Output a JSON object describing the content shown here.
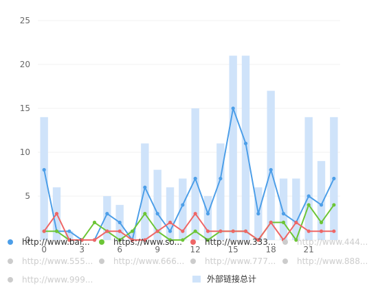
{
  "chart_data": {
    "type": "bar+line",
    "x": [
      "0",
      "1",
      "2",
      "3",
      "4",
      "5",
      "6",
      "7",
      "8",
      "9",
      "10",
      "11",
      "12",
      "13",
      "14",
      "15",
      "16",
      "17",
      "18",
      "19",
      "20",
      "21",
      "22",
      "23"
    ],
    "x_tick_labels": [
      "0",
      "3",
      "6",
      "9",
      "12",
      "15",
      "18",
      "21"
    ],
    "ylim": [
      0,
      25
    ],
    "y_ticks": [
      "0",
      "5",
      "10",
      "15",
      "20",
      "25"
    ],
    "grid": true,
    "legend_placement": "bottom",
    "bar_series": {
      "name": "外部链接总计",
      "color": "#cfe3fa",
      "values": [
        14,
        6,
        1,
        0,
        0,
        5,
        4,
        1,
        11,
        8,
        6,
        7,
        15,
        5,
        11,
        21,
        21,
        6,
        17,
        7,
        7,
        14,
        9,
        14
      ]
    },
    "series": [
      {
        "name": "http://www.bai...",
        "color": "#4c9ee8",
        "type": "line",
        "values": [
          8,
          1,
          1,
          0,
          0,
          3,
          2,
          0,
          6,
          3,
          1,
          4,
          7,
          3,
          7,
          15,
          11,
          3,
          8,
          3,
          2,
          5,
          4,
          7
        ]
      },
      {
        "name": "https://www.so...",
        "color": "#6cc536",
        "type": "line",
        "values": [
          1,
          1,
          0,
          0,
          2,
          1,
          0,
          1,
          3,
          1,
          0,
          0,
          1,
          0,
          1,
          1,
          1,
          0,
          2,
          2,
          0,
          4,
          2,
          4
        ]
      },
      {
        "name": "http://www.333...",
        "color": "#ee6666",
        "type": "line",
        "values": [
          1,
          3,
          0,
          0,
          0,
          1,
          1,
          0,
          0,
          1,
          2,
          1,
          3,
          1,
          1,
          1,
          1,
          0,
          2,
          0,
          2,
          1,
          1,
          1
        ]
      }
    ],
    "inactive_legend": [
      "http://www.444...",
      "http://www.555...",
      "http://www.666...",
      "http://www.777...",
      "http://www.888...",
      "http://www.999..."
    ],
    "inactive_color": "#cccccc"
  }
}
